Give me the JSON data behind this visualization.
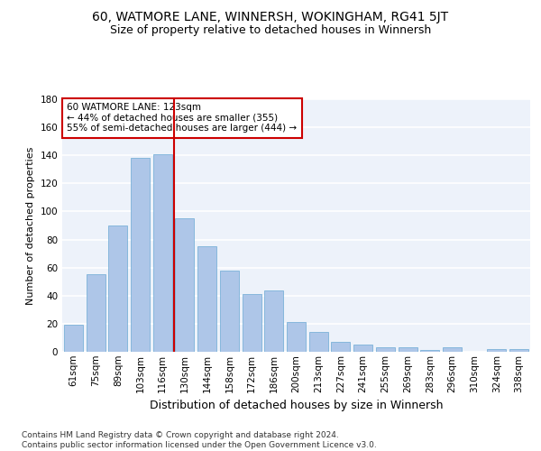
{
  "title1": "60, WATMORE LANE, WINNERSH, WOKINGHAM, RG41 5JT",
  "title2": "Size of property relative to detached houses in Winnersh",
  "xlabel": "Distribution of detached houses by size in Winnersh",
  "ylabel": "Number of detached properties",
  "categories": [
    "61sqm",
    "75sqm",
    "89sqm",
    "103sqm",
    "116sqm",
    "130sqm",
    "144sqm",
    "158sqm",
    "172sqm",
    "186sqm",
    "200sqm",
    "213sqm",
    "227sqm",
    "241sqm",
    "255sqm",
    "269sqm",
    "283sqm",
    "296sqm",
    "310sqm",
    "324sqm",
    "338sqm"
  ],
  "values": [
    19,
    55,
    90,
    138,
    141,
    95,
    75,
    58,
    41,
    44,
    21,
    14,
    7,
    5,
    3,
    3,
    1,
    3,
    0,
    2,
    2
  ],
  "bar_color": "#aec6e8",
  "bar_edge_color": "#6aaad4",
  "vline_color": "#cc0000",
  "annotation_text": "60 WATMORE LANE: 123sqm\n← 44% of detached houses are smaller (355)\n55% of semi-detached houses are larger (444) →",
  "annotation_box_color": "#cc0000",
  "ylim": [
    0,
    180
  ],
  "yticks": [
    0,
    20,
    40,
    60,
    80,
    100,
    120,
    140,
    160,
    180
  ],
  "bg_color": "#edf2fa",
  "grid_color": "#ffffff",
  "footer": "Contains HM Land Registry data © Crown copyright and database right 2024.\nContains public sector information licensed under the Open Government Licence v3.0.",
  "title1_fontsize": 10,
  "title2_fontsize": 9,
  "xlabel_fontsize": 9,
  "ylabel_fontsize": 8,
  "tick_fontsize": 7.5,
  "footer_fontsize": 6.5
}
